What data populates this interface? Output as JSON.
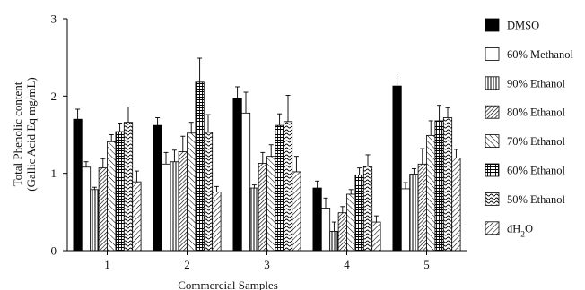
{
  "chart_data": {
    "type": "bar",
    "xlabel": "Commercial Samples",
    "ylabel_lines": [
      "Total Phenolic content",
      "(Gallic Acid Eq mg/mL)"
    ],
    "ylim": [
      0,
      3
    ],
    "yticks": [
      0,
      1,
      2,
      3
    ],
    "categories": [
      "1",
      "2",
      "3",
      "4",
      "5"
    ],
    "grid": false,
    "legend_placement": "right",
    "series": [
      {
        "name": "DMSO",
        "pattern": "solid",
        "values": [
          1.7,
          1.62,
          1.97,
          0.81,
          2.13
        ],
        "errors": [
          0.13,
          0.1,
          0.15,
          0.09,
          0.17
        ]
      },
      {
        "name": "60% Methanol",
        "pattern": "white",
        "values": [
          1.08,
          1.12,
          1.78,
          0.55,
          0.8
        ],
        "errors": [
          0.07,
          0.15,
          0.27,
          0.13,
          0.08
        ]
      },
      {
        "name": "90% Ethanol",
        "pattern": "vert",
        "values": [
          0.79,
          1.15,
          0.81,
          0.25,
          0.99
        ],
        "errors": [
          0.03,
          0.15,
          0.04,
          0.12,
          0.07
        ]
      },
      {
        "name": "80% Ethanol",
        "pattern": "diagdense",
        "values": [
          1.07,
          1.28,
          1.13,
          0.49,
          1.12
        ],
        "errors": [
          0.12,
          0.2,
          0.14,
          0.08,
          0.2
        ]
      },
      {
        "name": "70% Ethanol",
        "pattern": "diagwide",
        "values": [
          1.41,
          1.52,
          1.22,
          0.73,
          1.49
        ],
        "errors": [
          0.09,
          0.14,
          0.15,
          0.06,
          0.19
        ]
      },
      {
        "name": "60% Ethanol",
        "pattern": "grid",
        "values": [
          1.54,
          2.18,
          1.62,
          0.98,
          1.68
        ],
        "errors": [
          0.11,
          0.31,
          0.15,
          0.09,
          0.2
        ]
      },
      {
        "name": "50% Ethanol",
        "pattern": "wave",
        "values": [
          1.66,
          1.53,
          1.67,
          1.09,
          1.72
        ],
        "errors": [
          0.2,
          0.23,
          0.34,
          0.15,
          0.13
        ]
      },
      {
        "name": "dH2O",
        "pattern": "diagback",
        "values": [
          0.89,
          0.76,
          1.02,
          0.37,
          1.2
        ],
        "errors": [
          0.14,
          0.07,
          0.2,
          0.08,
          0.11
        ]
      }
    ]
  }
}
